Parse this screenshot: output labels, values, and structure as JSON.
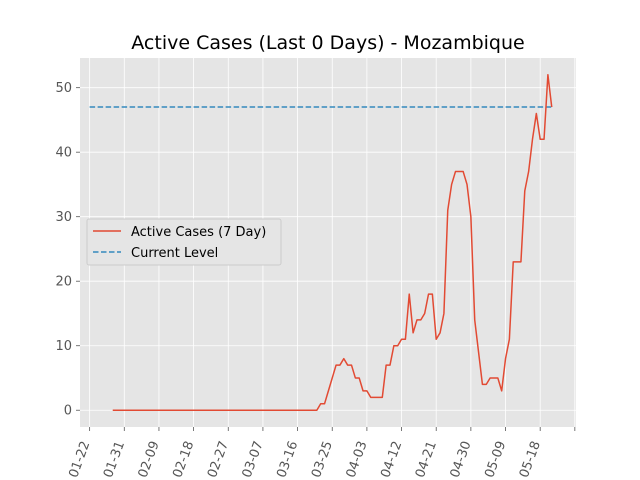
{
  "chart_data": {
    "type": "line",
    "title": "Active Cases (Last 0 Days) - Mozambique",
    "xlabel": "",
    "ylabel": "",
    "x_tick_labels": [
      "01-22",
      "01-31",
      "02-09",
      "02-18",
      "02-27",
      "03-07",
      "03-16",
      "03-25",
      "04-03",
      "04-12",
      "04-21",
      "04-30",
      "05-09",
      "05-18"
    ],
    "x_range_days": [
      -2.5,
      126.3
    ],
    "ylim": [
      -2.6,
      54.6
    ],
    "y_ticks": [
      0,
      10,
      20,
      30,
      40,
      50
    ],
    "grid": true,
    "legend_position": "center-left",
    "series": [
      {
        "name": "Active Cases (7 Day)",
        "style": "solid",
        "color": "#E24A33",
        "start_date": "2020-01-28",
        "values": [
          0,
          0,
          0,
          0,
          0,
          0,
          0,
          0,
          0,
          0,
          0,
          0,
          0,
          0,
          0,
          0,
          0,
          0,
          0,
          0,
          0,
          0,
          0,
          0,
          0,
          0,
          0,
          0,
          0,
          0,
          0,
          0,
          0,
          0,
          0,
          0,
          0,
          0,
          0,
          0,
          0,
          0,
          0,
          0,
          0,
          0,
          0,
          0,
          0,
          0,
          0,
          0,
          0,
          0,
          1,
          1,
          3,
          5,
          7,
          7,
          8,
          7,
          7,
          5,
          5,
          3,
          3,
          2,
          2,
          2,
          2,
          7,
          7,
          10,
          10,
          11,
          11,
          18,
          12,
          14,
          14,
          15,
          18,
          18,
          11,
          12,
          15,
          31,
          35,
          37,
          37,
          37,
          35,
          30,
          14,
          9,
          4,
          4,
          5,
          5,
          5,
          3,
          8,
          11,
          23,
          23,
          23,
          34,
          37,
          42,
          46,
          42,
          42,
          52,
          47
        ]
      },
      {
        "name": "Current Level",
        "style": "dashed",
        "color": "#348ABD",
        "values": [
          47,
          47
        ],
        "x_dates": [
          "2020-01-22",
          "2020-05-21"
        ]
      }
    ]
  }
}
